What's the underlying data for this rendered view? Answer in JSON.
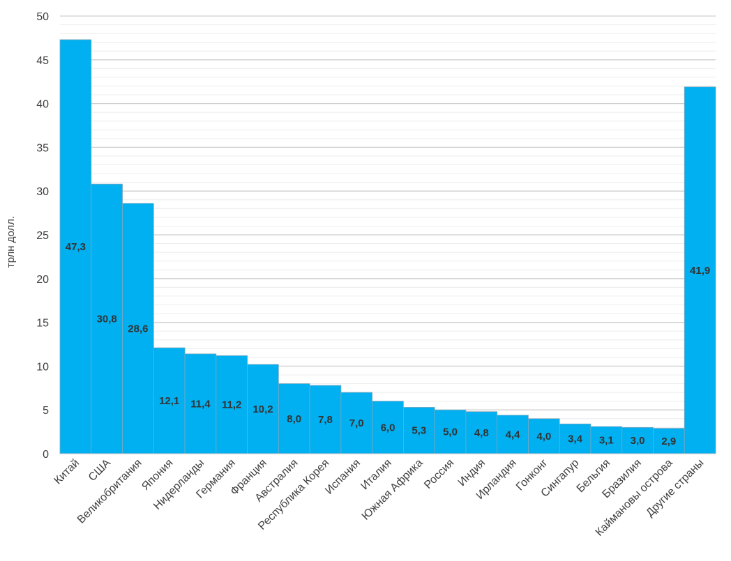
{
  "chart_data": {
    "type": "bar",
    "title": "",
    "xlabel": "",
    "ylabel": "трлн долл.",
    "ylim": [
      0,
      50
    ],
    "yticks": [
      0,
      5,
      10,
      15,
      20,
      25,
      30,
      35,
      40,
      45,
      50
    ],
    "grid": true,
    "legend": "none",
    "colors": {
      "bar": "#00b0f0",
      "bar_edge": "#7fa8bf",
      "grid": "#d9d9d9",
      "axis": "#bfbfbf"
    },
    "categories": [
      "Китай",
      "США",
      "Великобритания",
      "Япония",
      "Нидерланды",
      "Германия",
      "Франция",
      "Австралия",
      "Республика Корея",
      "Испания",
      "Италия",
      "Южная Африка",
      "Россия",
      "Индия",
      "Ирландия",
      "Гонконг",
      "Сингапур",
      "Бельгия",
      "Бразилия",
      "Каймановы острова",
      "Другие страны"
    ],
    "values": [
      47.3,
      30.8,
      28.6,
      12.1,
      11.4,
      11.2,
      10.2,
      8.0,
      7.8,
      7.0,
      6.0,
      5.3,
      5.0,
      4.8,
      4.4,
      4.0,
      3.4,
      3.1,
      3.0,
      2.9,
      41.9
    ],
    "value_labels": [
      "47,3",
      "30,8",
      "28,6",
      "12,1",
      "11,4",
      "11,2",
      "10,2",
      "8,0",
      "7,8",
      "7,0",
      "6,0",
      "5,3",
      "5,0",
      "4,8",
      "4,4",
      "4,0",
      "3,4",
      "3,1",
      "3,0",
      "2,9",
      "41,9"
    ]
  }
}
